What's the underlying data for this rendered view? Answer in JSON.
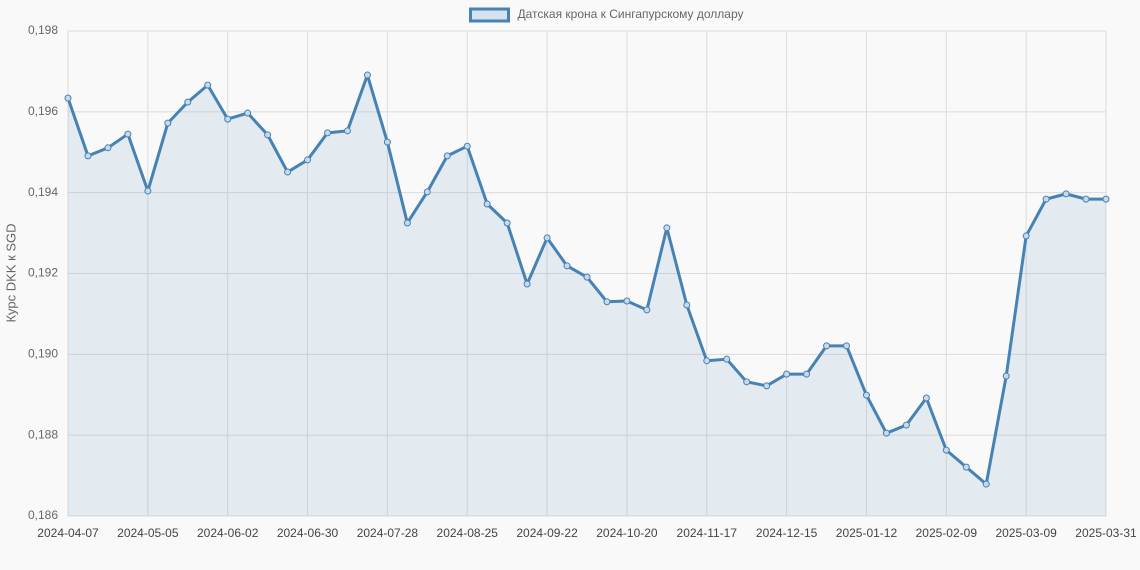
{
  "chart_data": {
    "type": "line",
    "legend_position": "top",
    "y_label": "Курс DKK к SGD",
    "categories": [
      "2024-04-07",
      null,
      null,
      null,
      "2024-05-05",
      null,
      null,
      null,
      "2024-06-02",
      null,
      null,
      null,
      "2024-06-30",
      null,
      null,
      null,
      "2024-07-28",
      null,
      null,
      null,
      "2024-08-25",
      null,
      null,
      null,
      "2024-09-22",
      null,
      null,
      null,
      "2024-10-20",
      null,
      null,
      null,
      "2024-11-17",
      null,
      null,
      null,
      "2024-12-15",
      null,
      null,
      null,
      "2025-01-12",
      null,
      null,
      null,
      "2025-02-09",
      null,
      null,
      null,
      "2025-03-09",
      null,
      null,
      null,
      "2025-03-31"
    ],
    "series": [
      {
        "name": "Датская крона к Сингапурскому доллару",
        "color": "#4682b4",
        "values": [
          0.19634,
          0.19491,
          0.19511,
          0.19545,
          0.19404,
          0.19572,
          0.19624,
          0.19666,
          0.19582,
          0.19597,
          0.19543,
          0.19451,
          0.19481,
          0.19548,
          0.19553,
          0.19691,
          0.19525,
          0.19325,
          0.19402,
          0.19491,
          0.19515,
          0.19372,
          0.19325,
          0.19174,
          0.19288,
          0.19219,
          0.19191,
          0.1913,
          0.19132,
          0.1911,
          0.19313,
          0.19122,
          0.18984,
          0.18988,
          0.18932,
          0.18922,
          0.18951,
          0.18951,
          0.19021,
          0.19021,
          0.18899,
          0.18805,
          0.18825,
          0.18892,
          0.18763,
          0.18721,
          0.18679,
          0.18946,
          0.19293,
          0.19384,
          0.19397,
          0.19384,
          0.19384
        ]
      }
    ],
    "ylim": [
      0.186,
      0.198
    ],
    "yticks": [
      {
        "value": 0.186,
        "label": "0,186"
      },
      {
        "value": 0.188,
        "label": "0,188"
      },
      {
        "value": 0.19,
        "label": "0,190"
      },
      {
        "value": 0.192,
        "label": "0,192"
      },
      {
        "value": 0.194,
        "label": "0,194"
      },
      {
        "value": 0.196,
        "label": "0,196"
      },
      {
        "value": 0.198,
        "label": "0,198"
      }
    ],
    "grid": true
  }
}
